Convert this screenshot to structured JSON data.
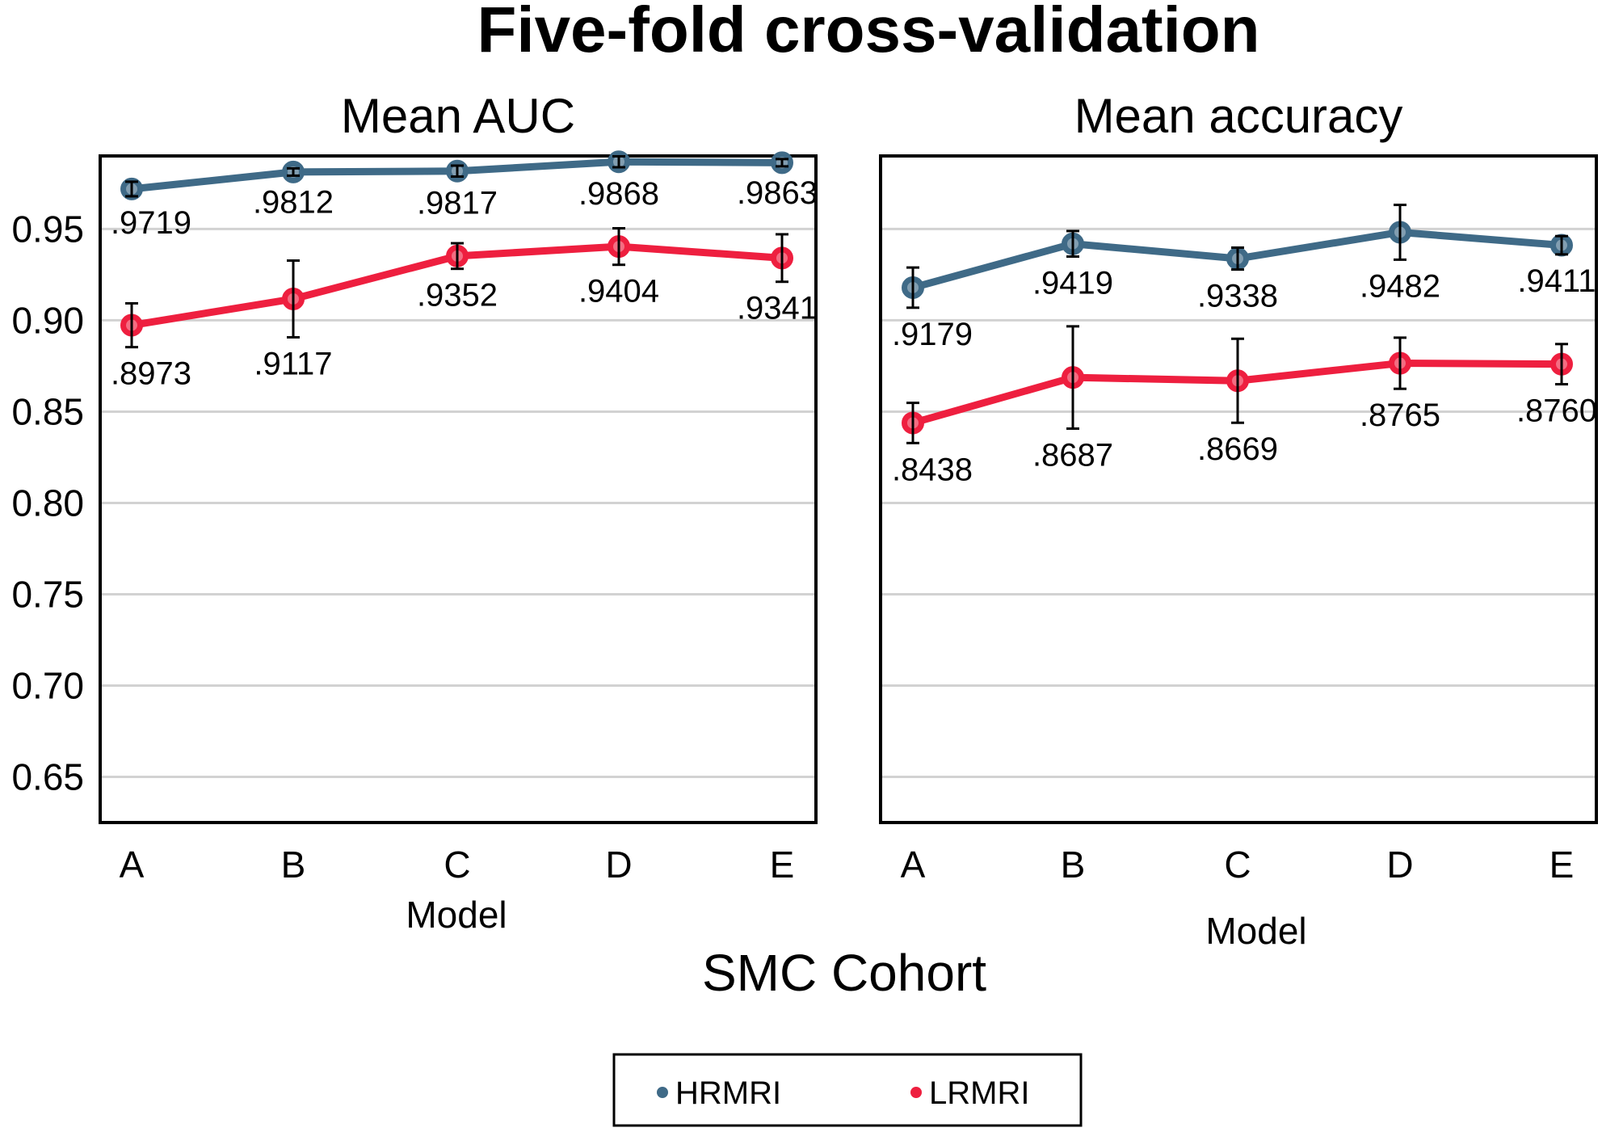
{
  "figure": {
    "title": "Five-fold cross-validation",
    "cohort_label": "SMC Cohort"
  },
  "legend": {
    "items": [
      {
        "label": "HRMRI",
        "color": "#3f6a87"
      },
      {
        "label": "LRMRI",
        "color": "#ee1f3f"
      }
    ]
  },
  "chart_data": [
    {
      "type": "line",
      "title": "Mean AUC",
      "xlabel": "Model",
      "ylabel": "",
      "categories": [
        "A",
        "B",
        "C",
        "D",
        "E"
      ],
      "ylim": [
        0.625,
        0.99
      ],
      "yticks": [
        0.65,
        0.7,
        0.75,
        0.8,
        0.85,
        0.9,
        0.95
      ],
      "ytick_labels": [
        "0.65",
        "0.70",
        "0.75",
        "0.80",
        "0.85",
        "0.90",
        "0.95"
      ],
      "grid": true,
      "series": [
        {
          "name": "HRMRI",
          "color": "#3f6a87",
          "values": [
            0.9719,
            0.9812,
            0.9817,
            0.9868,
            0.9863
          ],
          "errors": [
            0.004,
            0.002,
            0.003,
            0.003,
            0.002
          ],
          "labels": [
            ".9719",
            ".9812",
            ".9817",
            ".9868",
            ".9863"
          ]
        },
        {
          "name": "LRMRI",
          "color": "#ee1f3f",
          "values": [
            0.8973,
            0.9117,
            0.9352,
            0.9404,
            0.9341
          ],
          "errors": [
            0.012,
            0.021,
            0.007,
            0.01,
            0.013
          ],
          "labels": [
            ".8973",
            ".9117",
            ".9352",
            ".9404",
            ".9341"
          ]
        }
      ]
    },
    {
      "type": "line",
      "title": "Mean accuracy",
      "xlabel": "Model",
      "ylabel": "",
      "categories": [
        "A",
        "B",
        "C",
        "D",
        "E"
      ],
      "ylim": [
        0.625,
        0.99
      ],
      "yticks": [
        0.65,
        0.7,
        0.75,
        0.8,
        0.85,
        0.9,
        0.95
      ],
      "grid": true,
      "series": [
        {
          "name": "HRMRI",
          "color": "#3f6a87",
          "values": [
            0.9179,
            0.9419,
            0.9338,
            0.9482,
            0.9411
          ],
          "errors": [
            0.011,
            0.007,
            0.006,
            0.015,
            0.005
          ],
          "labels": [
            ".9179",
            ".9419",
            ".9338",
            ".9482",
            ".9411"
          ]
        },
        {
          "name": "LRMRI",
          "color": "#ee1f3f",
          "values": [
            0.8438,
            0.8687,
            0.8669,
            0.8765,
            0.876
          ],
          "errors": [
            0.011,
            0.028,
            0.023,
            0.014,
            0.011
          ],
          "labels": [
            ".8438",
            ".8687",
            ".8669",
            ".8765",
            ".8760"
          ]
        }
      ]
    }
  ]
}
